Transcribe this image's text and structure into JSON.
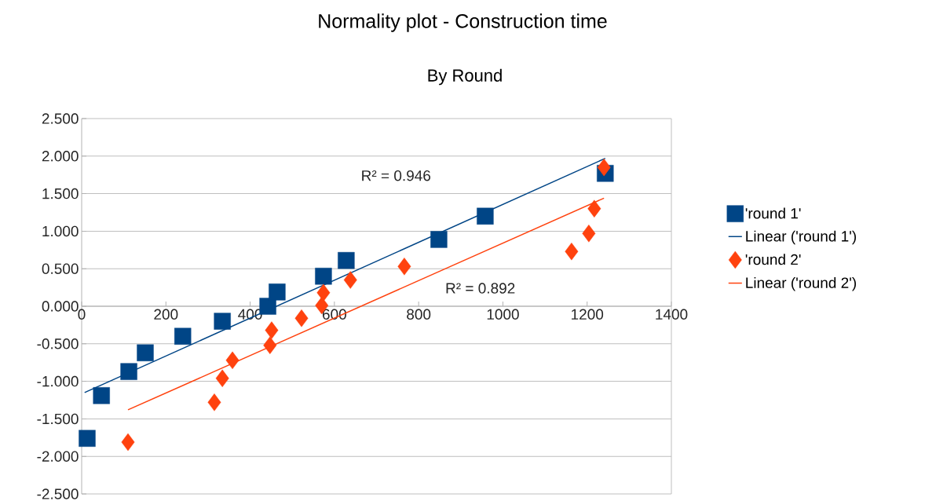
{
  "chart_data": {
    "type": "scatter",
    "title": "Normality plot - Construction time",
    "subtitle": "By Round",
    "xlim": [
      0,
      1400
    ],
    "xticks": [
      0,
      200,
      400,
      600,
      800,
      1000,
      1200,
      1400
    ],
    "ylim": [
      -2.5,
      2.5
    ],
    "yticks": [
      {
        "value": 2.5,
        "label": "2.500"
      },
      {
        "value": 2.0,
        "label": "2.000"
      },
      {
        "value": 1.5,
        "label": "1.500"
      },
      {
        "value": 1.0,
        "label": "1.000"
      },
      {
        "value": 0.5,
        "label": "0.500"
      },
      {
        "value": 0.0,
        "label": "0.000"
      },
      {
        "value": -0.5,
        "label": "-0.500"
      },
      {
        "value": -1.0,
        "label": "-1.000"
      },
      {
        "value": -1.5,
        "label": "-1.500"
      },
      {
        "value": -2.0,
        "label": "-2.000"
      },
      {
        "value": -2.5,
        "label": "-2.500"
      }
    ],
    "grid": "y",
    "legend": "right",
    "series": [
      {
        "name": "'round 1'",
        "marker": "square",
        "color": "#004586",
        "x": [
          13,
          47,
          112,
          151,
          240,
          334,
          442,
          464,
          574,
          628,
          848,
          958,
          1243
        ],
        "values": [
          -1.76,
          -1.19,
          -0.87,
          -0.62,
          -0.4,
          -0.2,
          0.0,
          0.19,
          0.4,
          0.61,
          0.89,
          1.2,
          1.77
        ]
      },
      {
        "name": "Linear ('round 1')",
        "type": "line",
        "line_style": "solid",
        "color": "#004586",
        "x": [
          7,
          1243
        ],
        "values": [
          -1.15,
          1.97
        ]
      },
      {
        "name": "'round 2'",
        "marker": "diamond",
        "color": "#ff420e",
        "x": [
          110,
          315,
          334,
          358,
          447,
          451,
          522,
          570,
          574,
          638,
          766,
          1163,
          1204,
          1217,
          1240
        ],
        "values": [
          -1.81,
          -1.28,
          -0.96,
          -0.72,
          -0.52,
          -0.32,
          -0.16,
          0.01,
          0.18,
          0.35,
          0.53,
          0.73,
          0.97,
          1.3,
          1.85
        ]
      },
      {
        "name": "Linear ('round 2')",
        "type": "line",
        "line_style": "solid",
        "color": "#ff420e",
        "x": [
          110,
          1240
        ],
        "values": [
          -1.38,
          1.44
        ]
      }
    ],
    "annotations": [
      "R² = 0.946",
      "R² = 0.892"
    ]
  }
}
